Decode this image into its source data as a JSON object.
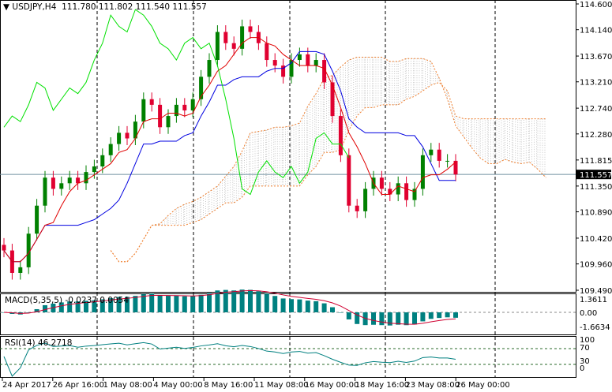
{
  "header": {
    "symbol": "USDJPY,H4",
    "open": "111.780",
    "high": "111.802",
    "low": "111.540",
    "close": "111.557"
  },
  "macd": {
    "label": "MACD(5,35,5) -0.0237 0.0054",
    "ticks": [
      "1.3611",
      "0.00",
      "-1.6634"
    ]
  },
  "rsi": {
    "label": "RSI(14) 46.2718",
    "ticks": [
      "100",
      "70",
      "30",
      "0"
    ]
  },
  "colors": {
    "bull": "#008000",
    "bear": "#e00030",
    "tenkan": "#e00000",
    "kijun": "#0000e0",
    "chikou": "#00e000",
    "cloud": "#a0a0a0",
    "cloud_edge": "#f08030",
    "macd_hist": "#008080",
    "macd_signal": "#d00030",
    "rsi_line": "#008080"
  },
  "chart_data": {
    "type": "candlestick",
    "price_axis": [
      "114.600",
      "114.140",
      "113.670",
      "113.210",
      "112.740",
      "112.280",
      "111.815",
      "111.350",
      "110.890",
      "110.420",
      "109.960",
      "109.490"
    ],
    "ylim": [
      109.49,
      114.6
    ],
    "current_price": "111.557",
    "time_axis": [
      "24 Apr 2017",
      "26 Apr 16:00",
      "1 May 08:00",
      "4 May 00:00",
      "8 May 16:00",
      "11 May 08:00",
      "16 May 00:00",
      "18 May 16:00",
      "23 May 08:00",
      "26 May 00:00"
    ],
    "closes": [
      110.2,
      109.8,
      109.9,
      110.5,
      111.0,
      111.5,
      111.3,
      111.4,
      111.5,
      111.4,
      111.6,
      111.7,
      111.9,
      112.1,
      112.3,
      112.2,
      112.5,
      112.9,
      112.8,
      112.4,
      112.6,
      112.8,
      112.7,
      112.9,
      113.3,
      113.6,
      114.1,
      113.9,
      113.8,
      114.2,
      114.1,
      113.9,
      113.6,
      113.5,
      113.3,
      113.6,
      113.7,
      113.5,
      113.6,
      113.2,
      112.6,
      111.9,
      111.0,
      110.9,
      111.3,
      111.5,
      111.3,
      111.2,
      111.4,
      111.1,
      111.3,
      111.9,
      112.0,
      111.8,
      111.8,
      111.557
    ]
  }
}
